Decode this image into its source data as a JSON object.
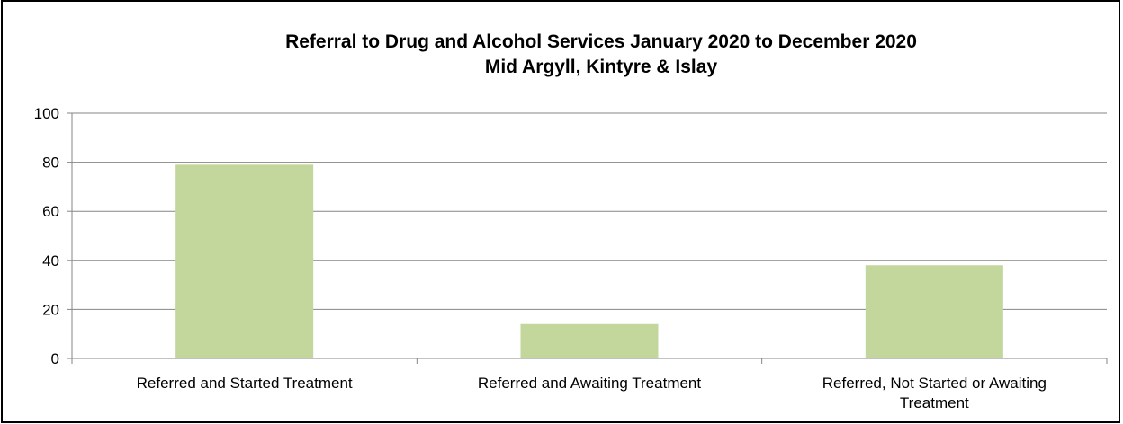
{
  "chart_data": {
    "type": "bar",
    "title_lines": [
      "Referral to Drug and Alcohol Services January 2020 to December 2020",
      "Mid Argyll, Kintyre & Islay"
    ],
    "categories": [
      [
        "Referred and Started Treatment"
      ],
      [
        "Referred and Awaiting Treatment"
      ],
      [
        "Referred, Not Started or Awaiting",
        "Treatment"
      ]
    ],
    "values": [
      79,
      14,
      38
    ],
    "ylim": [
      0,
      100
    ],
    "yticks": [
      "0",
      "20",
      "40",
      "60",
      "80",
      "100"
    ],
    "grid": true,
    "legend": "none",
    "colors": {
      "bar": "#c3d69b",
      "grid": "#868686",
      "axis": "#868686"
    }
  }
}
